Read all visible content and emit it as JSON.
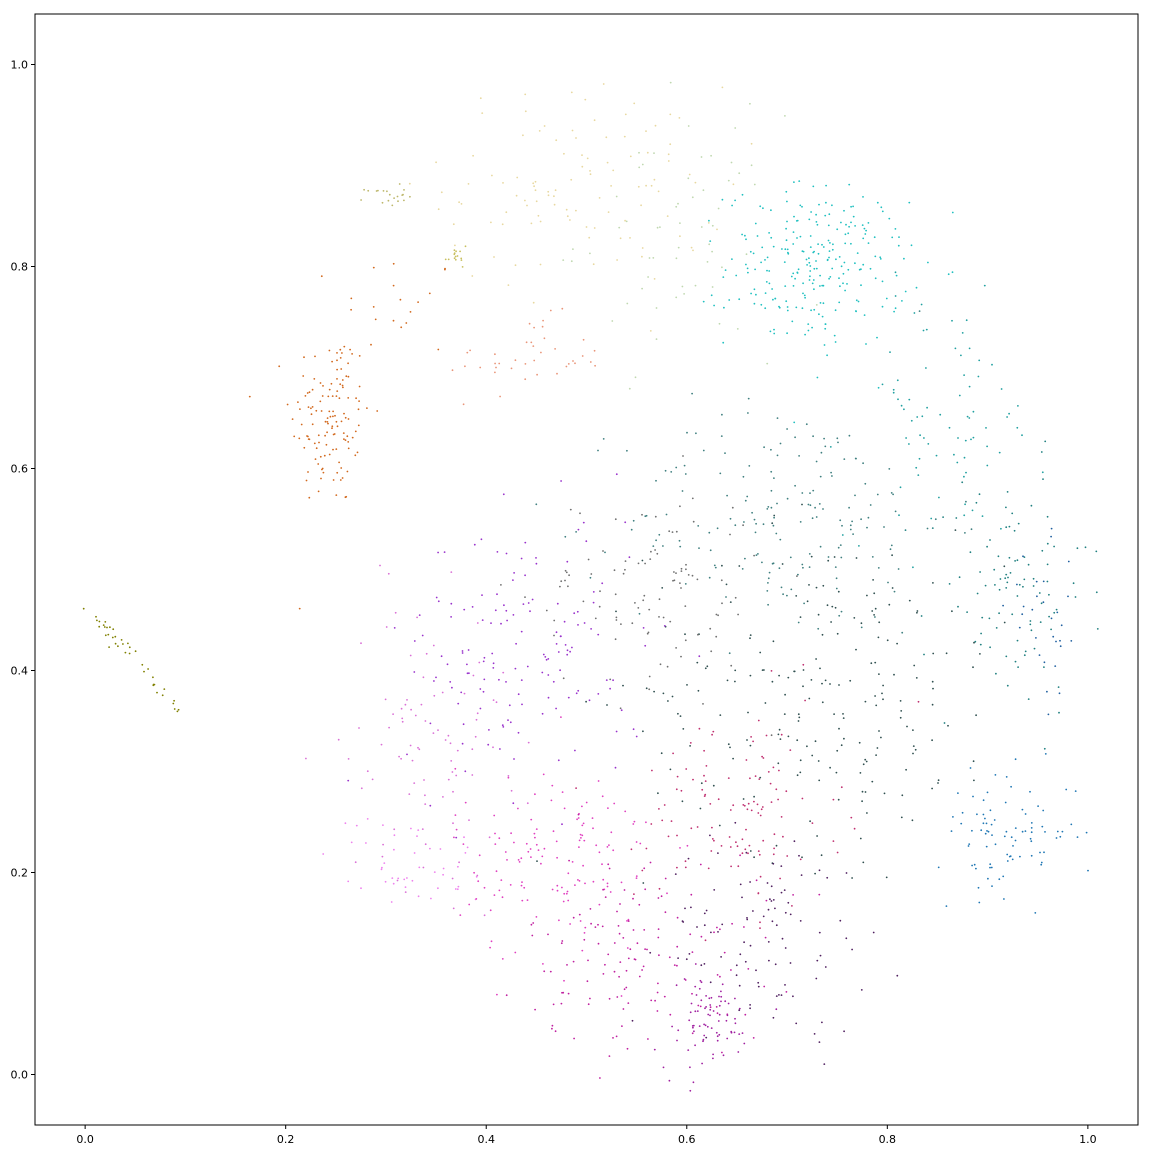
{
  "chart_data": {
    "type": "scatter",
    "title": "",
    "xlabel": "",
    "ylabel": "",
    "xlim": [
      -0.05,
      1.05
    ],
    "ylim": [
      -0.05,
      1.05
    ],
    "grid": false,
    "legend": "none",
    "xticks": [
      "0.0",
      "0.2",
      "0.4",
      "0.6",
      "0.8",
      "1.0"
    ],
    "yticks": [
      "0.0",
      "0.2",
      "0.4",
      "0.6",
      "0.8",
      "1.0"
    ],
    "clusters": [
      {
        "color": "#808000",
        "cx": 0.05,
        "cy": 0.41,
        "sx": 0.025,
        "sy": 0.03,
        "n": 40,
        "shape": "line",
        "angle": -0.9
      },
      {
        "color": "#d2691e",
        "cx": 0.245,
        "cy": 0.65,
        "sx": 0.02,
        "sy": 0.045,
        "n": 130
      },
      {
        "color": "#d2691e",
        "cx": 0.31,
        "cy": 0.76,
        "sx": 0.03,
        "sy": 0.03,
        "n": 20
      },
      {
        "color": "#e9967a",
        "cx": 0.44,
        "cy": 0.71,
        "sx": 0.04,
        "sy": 0.02,
        "n": 40
      },
      {
        "color": "#bdb76b",
        "cx": 0.3,
        "cy": 0.87,
        "sx": 0.01,
        "sy": 0.005,
        "n": 20
      },
      {
        "color": "#c8c060",
        "cx": 0.37,
        "cy": 0.81,
        "sx": 0.006,
        "sy": 0.01,
        "n": 15
      },
      {
        "color": "#e8d8a0",
        "cx": 0.5,
        "cy": 0.88,
        "sx": 0.07,
        "sy": 0.05,
        "n": 110
      },
      {
        "color": "#c0d8b0",
        "cx": 0.59,
        "cy": 0.83,
        "sx": 0.05,
        "sy": 0.06,
        "n": 60
      },
      {
        "color": "#20c0c0",
        "cx": 0.73,
        "cy": 0.8,
        "sx": 0.045,
        "sy": 0.04,
        "n": 250
      },
      {
        "color": "#20a0a0",
        "cx": 0.86,
        "cy": 0.65,
        "sx": 0.05,
        "sy": 0.06,
        "n": 80
      },
      {
        "color": "#208080",
        "cx": 0.92,
        "cy": 0.48,
        "sx": 0.04,
        "sy": 0.06,
        "n": 100
      },
      {
        "color": "#408080",
        "cx": 0.7,
        "cy": 0.55,
        "sx": 0.08,
        "sy": 0.06,
        "n": 180
      },
      {
        "color": "#305050",
        "cx": 0.74,
        "cy": 0.38,
        "sx": 0.09,
        "sy": 0.08,
        "n": 220
      },
      {
        "color": "#1f77b4",
        "cx": 0.92,
        "cy": 0.24,
        "sx": 0.035,
        "sy": 0.03,
        "n": 90
      },
      {
        "color": "#2060a0",
        "cx": 0.96,
        "cy": 0.44,
        "sx": 0.02,
        "sy": 0.04,
        "n": 30
      },
      {
        "color": "#707070",
        "cx": 0.56,
        "cy": 0.48,
        "sx": 0.06,
        "sy": 0.05,
        "n": 100
      },
      {
        "color": "#9932cc",
        "cx": 0.44,
        "cy": 0.42,
        "sx": 0.06,
        "sy": 0.07,
        "n": 150
      },
      {
        "color": "#da70d6",
        "cx": 0.34,
        "cy": 0.33,
        "sx": 0.04,
        "sy": 0.07,
        "n": 90
      },
      {
        "color": "#ee82ee",
        "cx": 0.32,
        "cy": 0.21,
        "sx": 0.04,
        "sy": 0.025,
        "n": 45
      },
      {
        "color": "#e040c0",
        "cx": 0.47,
        "cy": 0.21,
        "sx": 0.05,
        "sy": 0.05,
        "n": 140
      },
      {
        "color": "#c020a0",
        "cx": 0.56,
        "cy": 0.12,
        "sx": 0.06,
        "sy": 0.05,
        "n": 140
      },
      {
        "color": "#a020a0",
        "cx": 0.62,
        "cy": 0.05,
        "sx": 0.025,
        "sy": 0.025,
        "n": 80
      },
      {
        "color": "#502060",
        "cx": 0.68,
        "cy": 0.14,
        "sx": 0.05,
        "sy": 0.05,
        "n": 100
      },
      {
        "color": "#c03070",
        "cx": 0.65,
        "cy": 0.26,
        "sx": 0.05,
        "sy": 0.05,
        "n": 120
      }
    ]
  }
}
